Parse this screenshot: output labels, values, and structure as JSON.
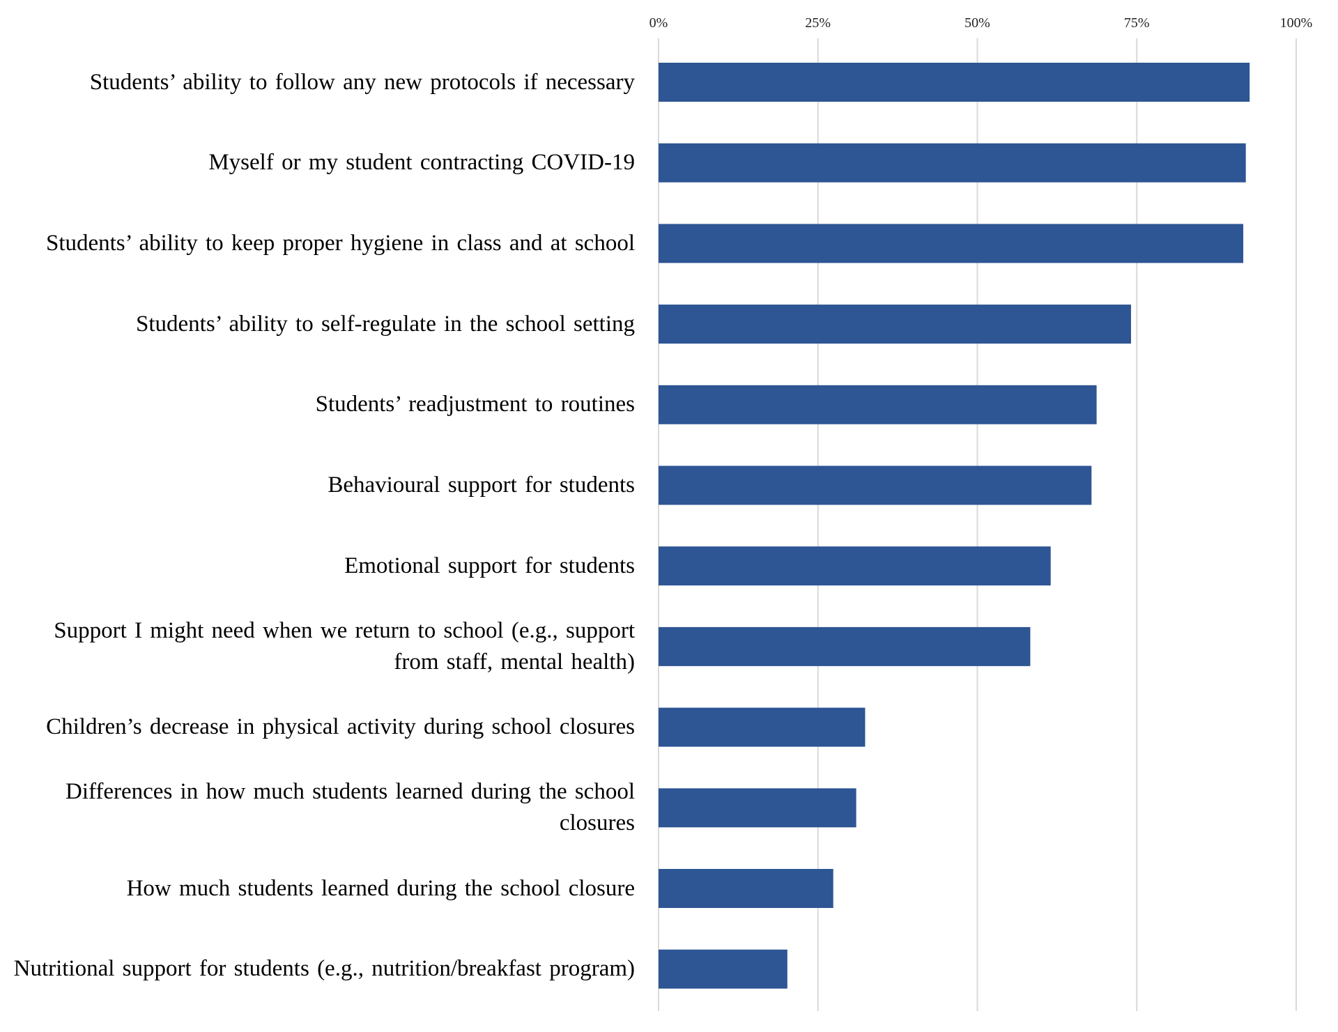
{
  "chart_data": {
    "type": "bar",
    "orientation": "horizontal",
    "title": "",
    "xlabel": "",
    "ylabel": "",
    "categories": [
      "Students’ ability to follow any new protocols if necessary",
      "Myself or my student contracting COVID-19",
      "Students’ ability to keep proper hygiene in class and at school",
      "Students’ ability to self-regulate in the school setting",
      "Students’ readjustment to routines",
      "Behavioural support for students",
      "Emotional support for students",
      "Support I might need when we return to school (e.g., support from staff, mental health)",
      "Children’s decrease in physical activity during school closures",
      "Differences in how much students learned during the school closures",
      "How much students learned during the school closure",
      "Nutritional support for students (e.g., nutrition/breakfast program)"
    ],
    "values": [
      92.7,
      92.1,
      91.7,
      74.1,
      68.7,
      67.9,
      61.5,
      58.3,
      32.4,
      31.0,
      27.4,
      20.2
    ],
    "xlim": [
      0,
      100
    ],
    "xticks": [
      "0%",
      "25%",
      "50%",
      "75%",
      "100%"
    ],
    "xtick_position": "top",
    "grid": "vertical",
    "bar_color": "#2E5594",
    "grid_color": "#D9D9D9"
  }
}
